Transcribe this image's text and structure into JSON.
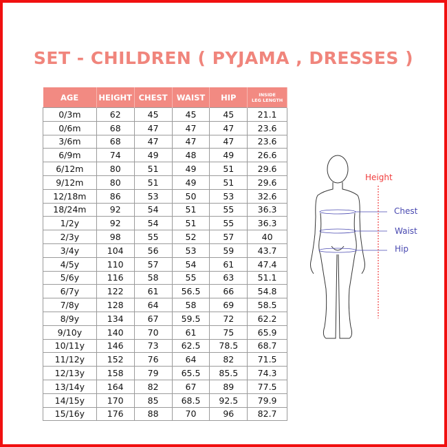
{
  "title": "SET - CHILDREN ( PYJAMA , DRESSES )",
  "table": {
    "headers": [
      "AGE",
      "HEIGHT",
      "CHEST",
      "WAIST",
      "HIP",
      "INSIDE LEG LENGTH"
    ],
    "rows": [
      [
        "0/3m",
        "62",
        "45",
        "45",
        "45",
        "21.1"
      ],
      [
        "0/6m",
        "68",
        "47",
        "47",
        "47",
        "23.6"
      ],
      [
        "3/6m",
        "68",
        "47",
        "47",
        "47",
        "23.6"
      ],
      [
        "6/9m",
        "74",
        "49",
        "48",
        "49",
        "26.6"
      ],
      [
        "6/12m",
        "80",
        "51",
        "49",
        "51",
        "29.6"
      ],
      [
        "9/12m",
        "80",
        "51",
        "49",
        "51",
        "29.6"
      ],
      [
        "12/18m",
        "86",
        "53",
        "50",
        "53",
        "32.6"
      ],
      [
        "18/24m",
        "92",
        "54",
        "51",
        "55",
        "36.3"
      ],
      [
        "1/2y",
        "92",
        "54",
        "51",
        "55",
        "36.3"
      ],
      [
        "2/3y",
        "98",
        "55",
        "52",
        "57",
        "40"
      ],
      [
        "3/4y",
        "104",
        "56",
        "53",
        "59",
        "43.7"
      ],
      [
        "4/5y",
        "110",
        "57",
        "54",
        "61",
        "47.4"
      ],
      [
        "5/6y",
        "116",
        "58",
        "55",
        "63",
        "51.1"
      ],
      [
        "6/7y",
        "122",
        "61",
        "56.5",
        "66",
        "54.8"
      ],
      [
        "7/8y",
        "128",
        "64",
        "58",
        "69",
        "58.5"
      ],
      [
        "8/9y",
        "134",
        "67",
        "59.5",
        "72",
        "62.2"
      ],
      [
        "9/10y",
        "140",
        "70",
        "61",
        "75",
        "65.9"
      ],
      [
        "10/11y",
        "146",
        "73",
        "62.5",
        "78.5",
        "68.7"
      ],
      [
        "11/12y",
        "152",
        "76",
        "64",
        "82",
        "71.5"
      ],
      [
        "12/13y",
        "158",
        "79",
        "65.5",
        "85.5",
        "74.3"
      ],
      [
        "13/14y",
        "164",
        "82",
        "67",
        "89",
        "77.5"
      ],
      [
        "14/15y",
        "170",
        "85",
        "68.5",
        "92.5",
        "79.9"
      ],
      [
        "15/16y",
        "176",
        "88",
        "70",
        "96",
        "82.7"
      ]
    ]
  },
  "figure": {
    "height_label": "Height",
    "chest_label": "Chest",
    "waist_label": "Waist",
    "hip_label": "Hip"
  },
  "colors": {
    "border": "#f01010",
    "accent": "#f28a82",
    "height": "#f03c3c",
    "measure": "#4848b0"
  }
}
